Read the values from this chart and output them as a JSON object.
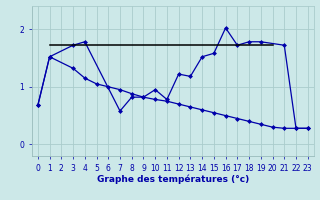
{
  "bg_color": "#cce8e8",
  "grid_color": "#aacccc",
  "line_color": "#0000aa",
  "hline_color": "#000000",
  "xlabel": "Graphe des températures (°c)",
  "xticks": [
    0,
    1,
    2,
    3,
    4,
    5,
    6,
    7,
    8,
    9,
    10,
    11,
    12,
    13,
    14,
    15,
    16,
    17,
    18,
    19,
    20,
    21,
    22,
    23
  ],
  "yticks": [
    0,
    1,
    2
  ],
  "ylim": [
    -0.2,
    2.4
  ],
  "xlim": [
    -0.5,
    23.5
  ],
  "line1_x": [
    0,
    1,
    3,
    4,
    7,
    8,
    9,
    10,
    11,
    12,
    13,
    14,
    15,
    16,
    17,
    18,
    19,
    21,
    22,
    23
  ],
  "line1_y": [
    0.68,
    1.52,
    1.72,
    1.78,
    0.58,
    0.82,
    0.82,
    0.95,
    0.78,
    1.22,
    1.18,
    1.52,
    1.58,
    2.02,
    1.72,
    1.78,
    1.78,
    1.72,
    0.28,
    0.28
  ],
  "line2_x": [
    0,
    1,
    3,
    4,
    5,
    6,
    7,
    8,
    9,
    10,
    11,
    12,
    13,
    14,
    15,
    16,
    17,
    18,
    19,
    20,
    21,
    22,
    23
  ],
  "line2_y": [
    0.68,
    1.52,
    1.32,
    1.15,
    1.05,
    1.0,
    0.95,
    0.88,
    0.82,
    0.78,
    0.75,
    0.7,
    0.65,
    0.6,
    0.55,
    0.5,
    0.45,
    0.4,
    0.35,
    0.3,
    0.28,
    0.28,
    0.28
  ],
  "hline_x": [
    1,
    20
  ],
  "hline_y": [
    1.72,
    1.72
  ],
  "marker_size": 2.5,
  "lw": 0.9
}
